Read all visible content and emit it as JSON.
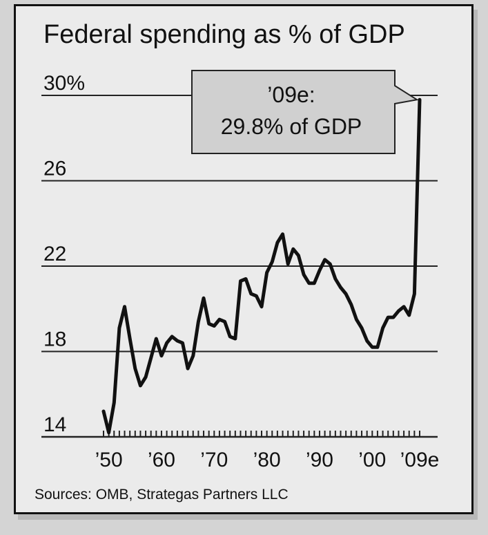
{
  "chart_data": {
    "type": "line",
    "title": "Federal spending as % of GDP",
    "xlabel": "",
    "ylabel": "",
    "xlim": [
      1949,
      2009
    ],
    "ylim": [
      14,
      30
    ],
    "y_ticks": [
      30,
      26,
      22,
      18,
      14
    ],
    "y_tick_labels": [
      "30%",
      "26",
      "22",
      "18",
      "14"
    ],
    "x_ticks": [
      1950,
      1960,
      1970,
      1980,
      1990,
      2000,
      2009
    ],
    "x_tick_labels": [
      "’50",
      "’60",
      "’70",
      "’80",
      "’90",
      "’00",
      "’09e"
    ],
    "grid": "horizontal",
    "x": [
      1949,
      1950,
      1951,
      1952,
      1953,
      1954,
      1955,
      1956,
      1957,
      1958,
      1959,
      1960,
      1961,
      1962,
      1963,
      1964,
      1965,
      1966,
      1967,
      1968,
      1969,
      1970,
      1971,
      1972,
      1973,
      1974,
      1975,
      1976,
      1977,
      1978,
      1979,
      1980,
      1981,
      1982,
      1983,
      1984,
      1985,
      1986,
      1987,
      1988,
      1989,
      1990,
      1991,
      1992,
      1993,
      1994,
      1995,
      1996,
      1997,
      1998,
      1999,
      2000,
      2001,
      2002,
      2003,
      2004,
      2005,
      2006,
      2007,
      2008,
      2009
    ],
    "series": [
      {
        "values": [
          15.2,
          14.2,
          15.6,
          19.1,
          20.1,
          18.6,
          17.2,
          16.4,
          16.8,
          17.7,
          18.6,
          17.8,
          18.4,
          18.7,
          18.5,
          18.4,
          17.2,
          17.8,
          19.4,
          20.5,
          19.3,
          19.2,
          19.5,
          19.4,
          18.7,
          18.6,
          21.3,
          21.4,
          20.7,
          20.6,
          20.1,
          21.7,
          22.2,
          23.1,
          23.5,
          22.1,
          22.8,
          22.5,
          21.6,
          21.2,
          21.2,
          21.8,
          22.3,
          22.1,
          21.4,
          21.0,
          20.7,
          20.2,
          19.5,
          19.1,
          18.5,
          18.2,
          18.2,
          19.1,
          19.6,
          19.6,
          19.9,
          20.1,
          19.7,
          20.7,
          29.8
        ]
      }
    ],
    "annotation": {
      "line1": "’09e:",
      "line2": "29.8% of GDP"
    },
    "source": "Sources: OMB, Strategas Partners LLC"
  }
}
